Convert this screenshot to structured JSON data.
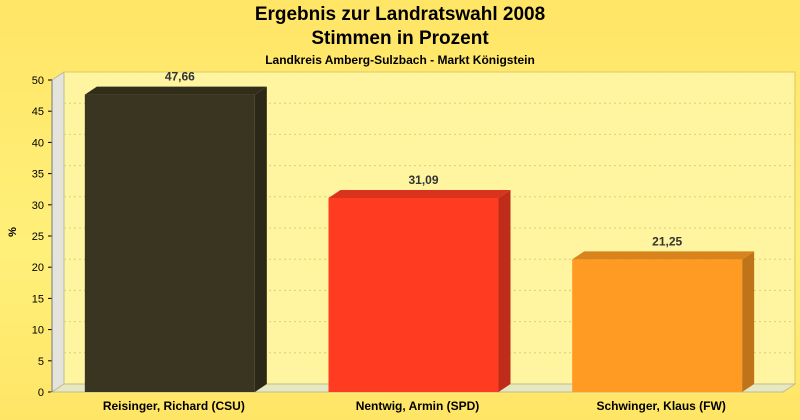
{
  "header": {
    "title_line1": "Ergebnis zur Landratswahl 2008",
    "title_line2": "Stimmen in Prozent",
    "subtitle": "Landkreis Amberg-Sulzbach - Markt Königstein"
  },
  "chart_data": {
    "type": "bar",
    "title": "Ergebnis zur Landratswahl 2008 Stimmen in Prozent",
    "subtitle": "Landkreis Amberg-Sulzbach - Markt Königstein",
    "xlabel": "",
    "ylabel": "%",
    "ylim": [
      0,
      50
    ],
    "yticks": [
      0,
      5,
      10,
      15,
      20,
      25,
      30,
      35,
      40,
      45,
      50
    ],
    "grid": true,
    "categories": [
      "Reisinger, Richard (CSU)",
      "Nentwig, Armin (SPD)",
      "Schwinger, Klaus (FW)"
    ],
    "values": [
      47.66,
      31.09,
      21.25
    ],
    "value_labels": [
      "47,66",
      "31,09",
      "21,25"
    ],
    "colors": [
      "#3a3520",
      "#ff3b22",
      "#ff9a22"
    ]
  }
}
